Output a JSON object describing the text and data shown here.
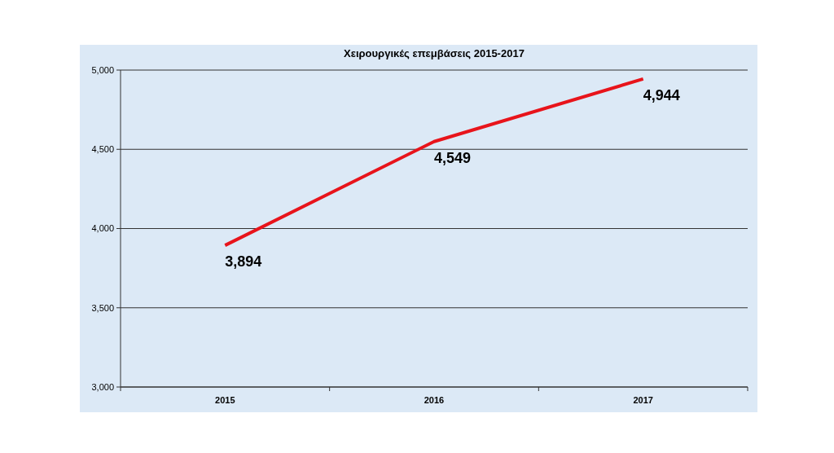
{
  "chart_data": {
    "type": "line",
    "title": "Χειρουργικές επεμβάσεις 2015-2017",
    "categories": [
      "2015",
      "2016",
      "2017"
    ],
    "series": [
      {
        "color": "#e8141b",
        "values": [
          3894,
          4549,
          4944
        ],
        "value_labels": [
          "3,894",
          "4,549",
          "4,944"
        ]
      }
    ],
    "ylim": [
      3000,
      5000
    ],
    "yticks": [
      {
        "value": 3000,
        "label": "3,000"
      },
      {
        "value": 3500,
        "label": "3,500"
      },
      {
        "value": 4000,
        "label": "4,000"
      },
      {
        "value": 4500,
        "label": "4,500"
      },
      {
        "value": 5000,
        "label": "5,000"
      }
    ],
    "grid": "y",
    "marker": "none"
  }
}
